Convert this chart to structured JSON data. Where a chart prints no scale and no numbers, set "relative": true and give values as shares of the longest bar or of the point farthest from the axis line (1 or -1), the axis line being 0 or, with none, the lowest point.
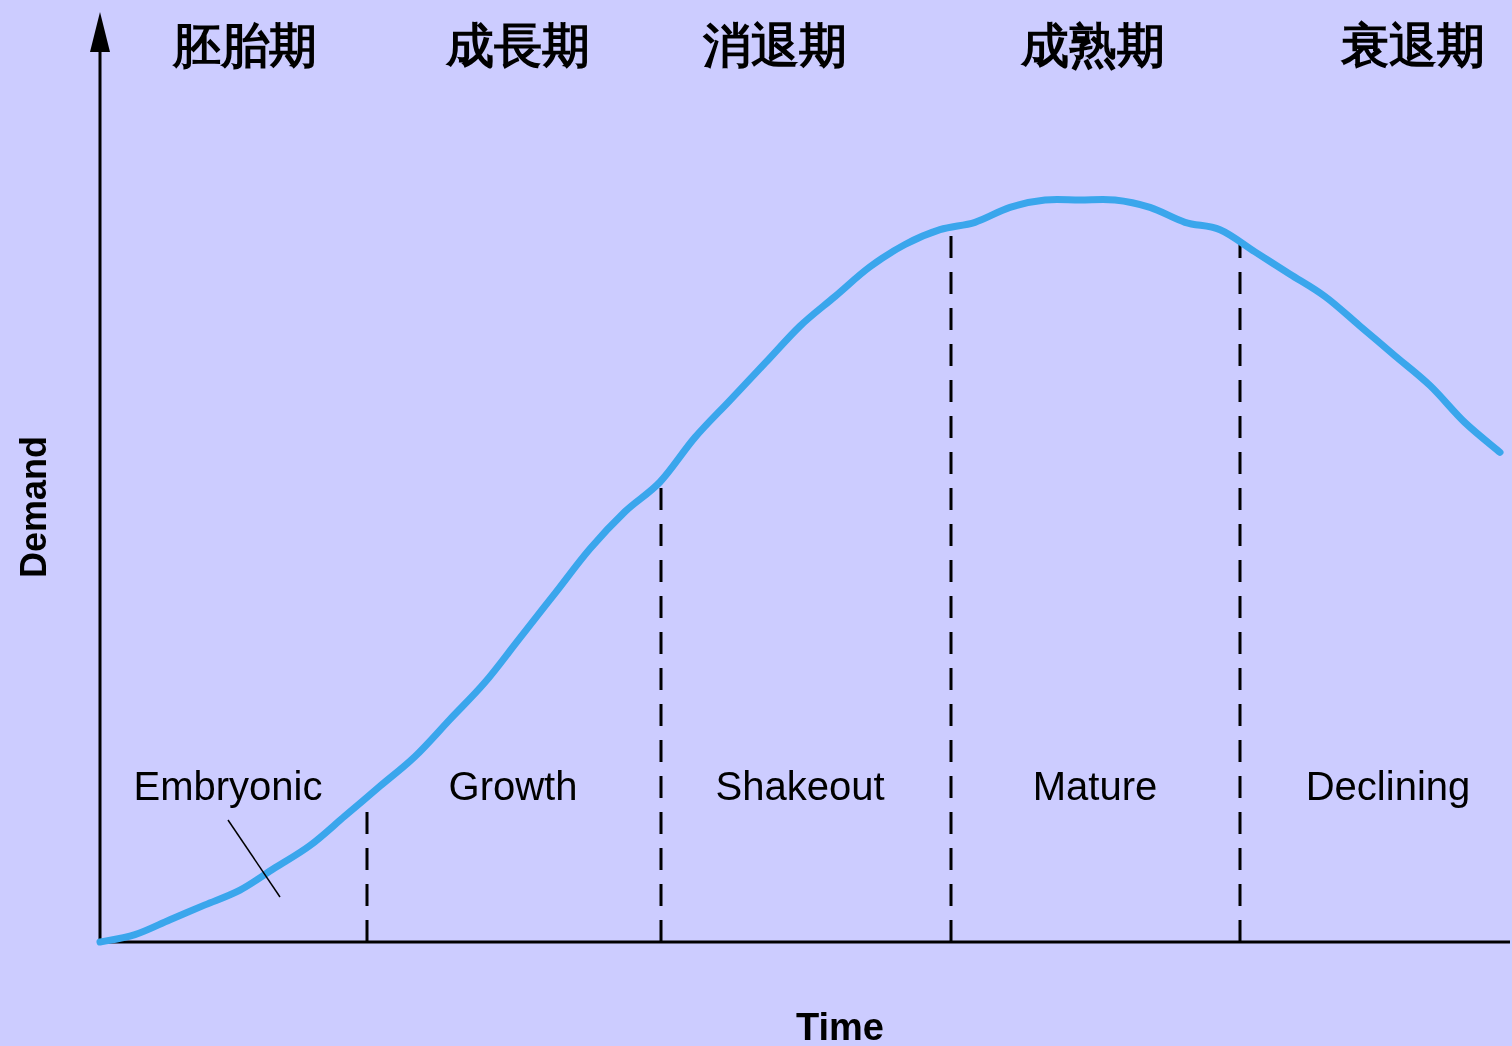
{
  "chart_data": {
    "type": "line",
    "xlabel": "Time",
    "ylabel": "Demand",
    "relative": true,
    "categories": [
      null,
      null,
      null,
      null,
      null,
      null,
      null,
      null,
      null,
      null,
      null,
      null,
      null,
      null,
      null,
      null,
      null,
      null,
      null,
      null,
      null,
      null,
      null,
      null,
      null,
      null,
      null,
      null,
      null,
      null,
      null,
      null,
      null,
      null,
      null,
      null,
      null,
      null,
      null,
      null,
      null
    ],
    "series": [
      {
        "color": "#3aa6ec",
        "values": [
          0.0,
          0.01,
          0.03,
          0.05,
          0.07,
          0.1,
          0.13,
          0.17,
          0.21,
          0.25,
          0.3,
          0.35,
          0.41,
          0.47,
          0.53,
          0.58,
          0.62,
          0.68,
          0.73,
          0.78,
          0.83,
          0.87,
          0.91,
          0.94,
          0.96,
          0.97,
          0.99,
          1.0,
          1.0,
          1.0,
          0.99,
          0.97,
          0.96,
          0.93,
          0.9,
          0.87,
          0.83,
          0.79,
          0.75,
          0.7,
          0.66
        ]
      }
    ],
    "annotations": [
      "胚胎期",
      "成長期",
      "消退期",
      "成熟期",
      "衰退期",
      "Embryonic",
      "Growth",
      "Shakeout",
      "Mature",
      "Declining"
    ]
  }
}
